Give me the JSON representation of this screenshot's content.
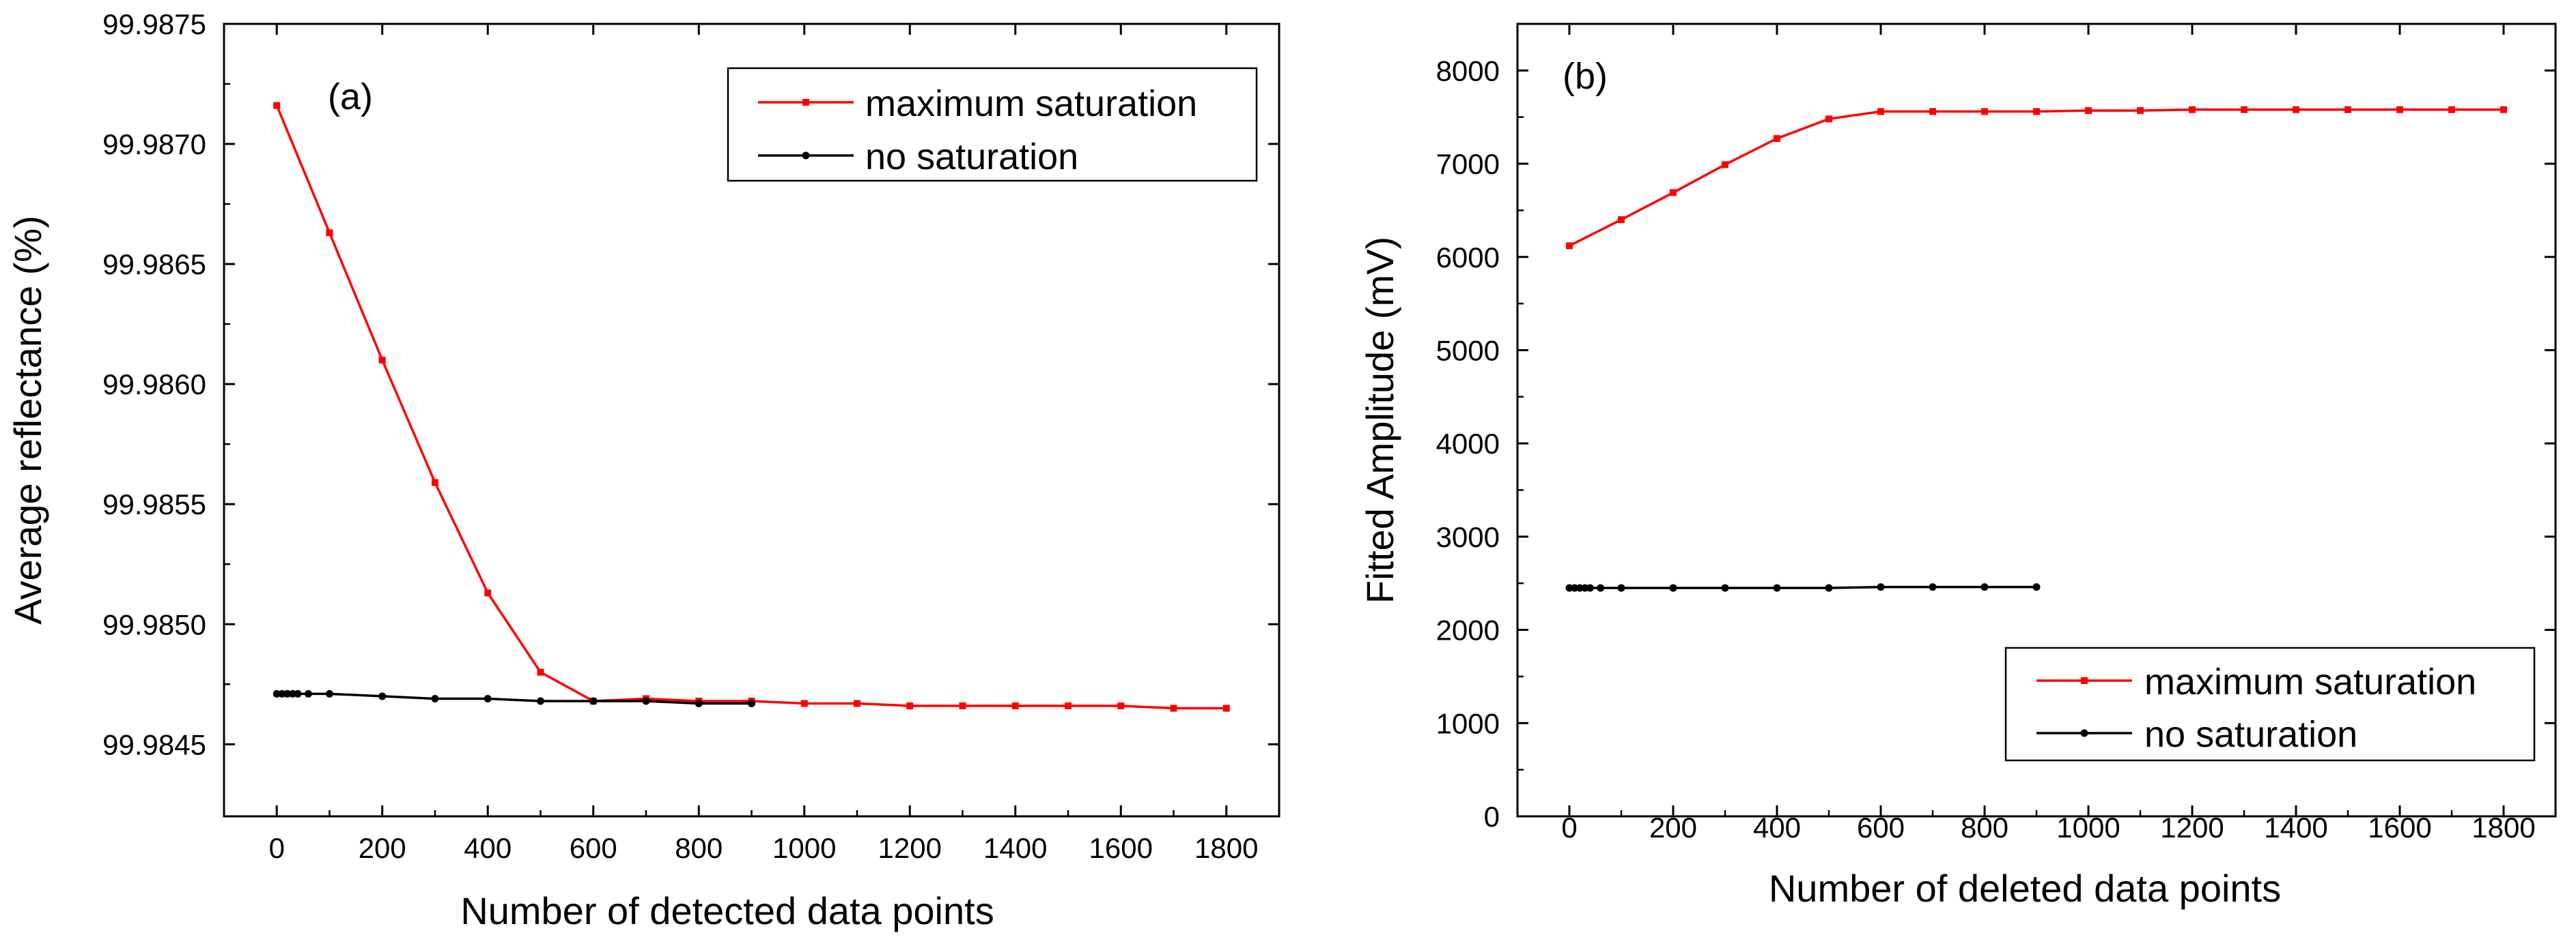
{
  "colors": {
    "max_saturation": "#ff0000",
    "no_saturation": "#000000",
    "axis": "#000000"
  },
  "chart_data": [
    {
      "type": "line",
      "panel_label": "(a)",
      "xlabel": "Number of detected data points",
      "ylabel": "Average reflectance (%)",
      "xlim": [
        -100,
        1900
      ],
      "ylim": [
        99.9842,
        99.9875
      ],
      "xticks": [
        0,
        200,
        400,
        600,
        800,
        1000,
        1200,
        1400,
        1600,
        1800
      ],
      "xtick_labels": [
        "0",
        "200",
        "400",
        "600",
        "800",
        "1000",
        "1200",
        "1400",
        "1600",
        "1800"
      ],
      "yticks": [
        99.9845,
        99.985,
        99.9855,
        99.986,
        99.9865,
        99.987,
        99.9875
      ],
      "ytick_labels": [
        "99.9845",
        "99.9850",
        "99.9855",
        "99.9860",
        "99.9865",
        "99.9870",
        "99.9875"
      ],
      "legend_position": "top-right",
      "series": [
        {
          "name": "maximum saturation",
          "color": "#ff0000",
          "x": [
            0,
            100,
            200,
            300,
            400,
            500,
            600,
            700,
            800,
            900,
            1000,
            1100,
            1200,
            1300,
            1400,
            1500,
            1600,
            1700,
            1800
          ],
          "y": [
            99.98716,
            99.98663,
            99.9861,
            99.98559,
            99.98513,
            99.9848,
            99.98468,
            99.98469,
            99.98468,
            99.98468,
            99.98467,
            99.98467,
            99.98466,
            99.98466,
            99.98466,
            99.98466,
            99.98466,
            99.98465,
            99.98465
          ]
        },
        {
          "name": "no saturation",
          "color": "#000000",
          "x": [
            0,
            10,
            20,
            30,
            40,
            60,
            100,
            200,
            300,
            400,
            500,
            600,
            700,
            800,
            900
          ],
          "y": [
            99.98471,
            99.98471,
            99.98471,
            99.98471,
            99.98471,
            99.98471,
            99.98471,
            99.9847,
            99.98469,
            99.98469,
            99.98468,
            99.98468,
            99.98468,
            99.98467,
            99.98467
          ]
        }
      ]
    },
    {
      "type": "line",
      "panel_label": "(b)",
      "xlabel": "Number of deleted data points",
      "ylabel": "Fitted Amplitude (mV)",
      "xlim": [
        -100,
        1900
      ],
      "ylim": [
        0,
        8500
      ],
      "xticks": [
        0,
        200,
        400,
        600,
        800,
        1000,
        1200,
        1400,
        1600,
        1800
      ],
      "xtick_labels": [
        "0",
        "200",
        "400",
        "600",
        "800",
        "1000",
        "1200",
        "1400",
        "1600",
        "1800"
      ],
      "yticks": [
        0,
        1000,
        2000,
        3000,
        4000,
        5000,
        6000,
        7000,
        8000
      ],
      "ytick_labels": [
        "0",
        "1000",
        "2000",
        "3000",
        "4000",
        "5000",
        "6000",
        "7000",
        "8000"
      ],
      "legend_position": "bottom-right",
      "series": [
        {
          "name": "maximum saturation",
          "color": "#ff0000",
          "x": [
            0,
            100,
            200,
            300,
            400,
            500,
            600,
            700,
            800,
            900,
            1000,
            1100,
            1200,
            1300,
            1400,
            1500,
            1600,
            1700,
            1800
          ],
          "y": [
            6120,
            6400,
            6690,
            6990,
            7270,
            7480,
            7560,
            7560,
            7560,
            7560,
            7570,
            7570,
            7580,
            7580,
            7580,
            7580,
            7580,
            7580,
            7580
          ]
        },
        {
          "name": "no saturation",
          "color": "#000000",
          "x": [
            0,
            10,
            20,
            30,
            40,
            60,
            100,
            200,
            300,
            400,
            500,
            600,
            700,
            800,
            900
          ],
          "y": [
            2450,
            2450,
            2450,
            2450,
            2450,
            2450,
            2450,
            2450,
            2450,
            2450,
            2450,
            2460,
            2460,
            2460,
            2460
          ]
        }
      ]
    }
  ]
}
